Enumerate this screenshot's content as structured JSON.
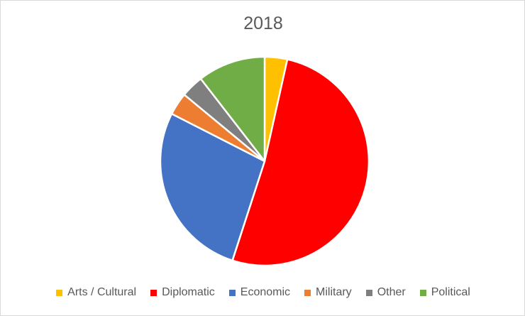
{
  "chart_data": {
    "type": "pie",
    "title": "2018",
    "categories": [
      "Arts / Cultural",
      "Diplomatic",
      "Economic",
      "Military",
      "Other",
      "Political"
    ],
    "values": [
      3.5,
      51.5,
      27.5,
      3.5,
      3.5,
      10.5
    ],
    "colors": [
      "#ffc000",
      "#ff0000",
      "#4472c4",
      "#ed7d31",
      "#7f7f7f",
      "#70ad47"
    ],
    "legend": "bottom",
    "start_angle_deg": 0,
    "direction": "clockwise"
  }
}
